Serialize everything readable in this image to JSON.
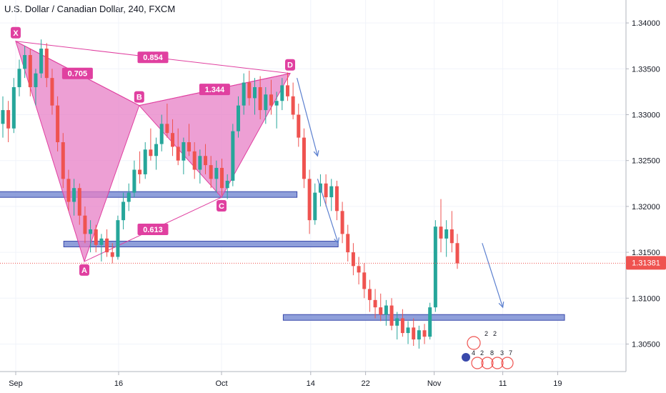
{
  "title": "U.S. Dollar / Canadian Dollar, 240, FXCM",
  "colors": {
    "up": "#26a69a",
    "down": "#ef5350",
    "pattern": "#e040a0",
    "pattern_fill": "#e77fc5",
    "zone": "#7b8ed4",
    "zone_border": "#3949ab",
    "arrow": "#5b7fcf",
    "price_line": "#ef5350",
    "axis_text": "#131722",
    "grid": "#f0f3fa"
  },
  "last_price_label": "1.31381",
  "events_row_top": [
    "2",
    "2"
  ],
  "events_row_bottom": [
    "4",
    "2",
    "8",
    "3",
    "7"
  ],
  "chart_data": {
    "type": "candlestick",
    "title": "U.S. Dollar / Canadian Dollar, 240, FXCM",
    "ylim": [
      1.302,
      1.3425
    ],
    "yticks": [
      "1.30500",
      "1.31000",
      "1.31500",
      "1.32000",
      "1.32500",
      "1.33000",
      "1.33500",
      "1.34000"
    ],
    "ytick_values": [
      1.305,
      1.31,
      1.315,
      1.32,
      1.325,
      1.33,
      1.335,
      1.34
    ],
    "xticks": [
      "Sep",
      "16",
      "Oct",
      "14",
      "22",
      "Nov",
      "11",
      "19"
    ],
    "last_price": 1.31381,
    "harmonic_pattern": {
      "points": [
        {
          "label": "X",
          "date": "Sep 1",
          "price": 1.338
        },
        {
          "label": "A",
          "date": "Sep 11",
          "price": 1.314
        },
        {
          "label": "B",
          "date": "Sep 19",
          "price": 1.331
        },
        {
          "label": "C",
          "date": "Oct 1",
          "price": 1.321
        },
        {
          "label": "D",
          "date": "Oct 11",
          "price": 1.3345
        }
      ],
      "ratios": [
        "0.705",
        "0.854",
        "1.344",
        "0.613"
      ]
    },
    "zones": [
      {
        "from": "Aug 28",
        "to": "Oct 12",
        "price": 1.3213
      },
      {
        "from": "Sep 8",
        "to": "Oct 18",
        "price": 1.3159
      },
      {
        "from": "Oct 10",
        "to": "Nov 20",
        "price": 1.3079
      }
    ],
    "series": [
      {
        "values": [
          [
            1.329,
            1.332,
            1.3275,
            1.3305
          ],
          [
            1.3305,
            1.3315,
            1.327,
            1.3285
          ],
          [
            1.3285,
            1.334,
            1.328,
            1.333
          ],
          [
            1.333,
            1.336,
            1.332,
            1.335
          ],
          [
            1.335,
            1.3375,
            1.334,
            1.3365
          ],
          [
            1.3365,
            1.3372,
            1.332,
            1.333
          ],
          [
            1.333,
            1.335,
            1.331,
            1.3345
          ],
          [
            1.3345,
            1.3382,
            1.334,
            1.3372
          ],
          [
            1.3372,
            1.3378,
            1.333,
            1.334
          ],
          [
            1.334,
            1.335,
            1.33,
            1.331
          ],
          [
            1.331,
            1.332,
            1.326,
            1.327
          ],
          [
            1.327,
            1.328,
            1.322,
            1.323
          ],
          [
            1.323,
            1.324,
            1.3195,
            1.3205
          ],
          [
            1.3205,
            1.323,
            1.319,
            1.322
          ],
          [
            1.322,
            1.3225,
            1.318,
            1.319
          ],
          [
            1.319,
            1.32,
            1.316,
            1.317
          ],
          [
            1.317,
            1.3185,
            1.315,
            1.3175
          ],
          [
            1.3175,
            1.318,
            1.315,
            1.3158
          ],
          [
            1.3158,
            1.317,
            1.314,
            1.3165
          ],
          [
            1.3165,
            1.3175,
            1.3145,
            1.315
          ],
          [
            1.315,
            1.316,
            1.3138,
            1.3145
          ],
          [
            1.3145,
            1.319,
            1.3142,
            1.3185
          ],
          [
            1.3185,
            1.3215,
            1.3175,
            1.3205
          ],
          [
            1.3205,
            1.3225,
            1.3195,
            1.3215
          ],
          [
            1.3215,
            1.325,
            1.321,
            1.324
          ],
          [
            1.324,
            1.326,
            1.3225,
            1.3235
          ],
          [
            1.3235,
            1.327,
            1.323,
            1.3262
          ],
          [
            1.3262,
            1.3285,
            1.325,
            1.3255
          ],
          [
            1.3255,
            1.3275,
            1.324,
            1.3268
          ],
          [
            1.3268,
            1.33,
            1.326,
            1.329
          ],
          [
            1.329,
            1.3312,
            1.3275,
            1.328
          ],
          [
            1.328,
            1.3295,
            1.3255,
            1.3265
          ],
          [
            1.3265,
            1.3285,
            1.3245,
            1.325
          ],
          [
            1.325,
            1.3275,
            1.3235,
            1.327
          ],
          [
            1.327,
            1.329,
            1.3255,
            1.326
          ],
          [
            1.326,
            1.327,
            1.323,
            1.324
          ],
          [
            1.324,
            1.3262,
            1.3225,
            1.3255
          ],
          [
            1.3255,
            1.3268,
            1.3235,
            1.3245
          ],
          [
            1.3245,
            1.3255,
            1.322,
            1.323
          ],
          [
            1.323,
            1.325,
            1.3215,
            1.3242
          ],
          [
            1.3242,
            1.3252,
            1.3212,
            1.322
          ],
          [
            1.322,
            1.3235,
            1.3208,
            1.3228
          ],
          [
            1.3228,
            1.329,
            1.3222,
            1.3282
          ],
          [
            1.3282,
            1.332,
            1.3275,
            1.331
          ],
          [
            1.331,
            1.3345,
            1.33,
            1.3335
          ],
          [
            1.3335,
            1.3348,
            1.331,
            1.3318
          ],
          [
            1.3318,
            1.334,
            1.33,
            1.333
          ],
          [
            1.333,
            1.3342,
            1.3295,
            1.3305
          ],
          [
            1.3305,
            1.333,
            1.329,
            1.3322
          ],
          [
            1.3322,
            1.3338,
            1.33,
            1.331
          ],
          [
            1.331,
            1.3325,
            1.3285,
            1.3315
          ],
          [
            1.3315,
            1.334,
            1.3305,
            1.3332
          ],
          [
            1.3332,
            1.3346,
            1.3315,
            1.332
          ],
          [
            1.332,
            1.3335,
            1.3295,
            1.33
          ],
          [
            1.33,
            1.3312,
            1.3265,
            1.3275
          ],
          [
            1.3275,
            1.3285,
            1.322,
            1.323
          ],
          [
            1.323,
            1.324,
            1.317,
            1.3185
          ],
          [
            1.3185,
            1.3225,
            1.318,
            1.3215
          ],
          [
            1.3215,
            1.3235,
            1.32,
            1.3225
          ],
          [
            1.3225,
            1.3235,
            1.32,
            1.321
          ],
          [
            1.321,
            1.323,
            1.3195,
            1.3222
          ],
          [
            1.3222,
            1.3228,
            1.3185,
            1.3195
          ],
          [
            1.3195,
            1.3205,
            1.316,
            1.317
          ],
          [
            1.317,
            1.318,
            1.314,
            1.315
          ],
          [
            1.315,
            1.316,
            1.3125,
            1.3135
          ],
          [
            1.3135,
            1.3145,
            1.3115,
            1.3128
          ],
          [
            1.3128,
            1.3138,
            1.31,
            1.311
          ],
          [
            1.311,
            1.312,
            1.3085,
            1.3098
          ],
          [
            1.3098,
            1.311,
            1.3078,
            1.309
          ],
          [
            1.309,
            1.3105,
            1.3075,
            1.3082
          ],
          [
            1.3082,
            1.3098,
            1.307,
            1.3092
          ],
          [
            1.3092,
            1.31,
            1.3065,
            1.307
          ],
          [
            1.307,
            1.3085,
            1.3055,
            1.3078
          ],
          [
            1.3078,
            1.3088,
            1.3058,
            1.3062
          ],
          [
            1.3062,
            1.3075,
            1.305,
            1.3068
          ],
          [
            1.3068,
            1.3078,
            1.3048,
            1.3055
          ],
          [
            1.3055,
            1.307,
            1.3045,
            1.3065
          ],
          [
            1.3065,
            1.3072,
            1.305,
            1.3058
          ],
          [
            1.3058,
            1.3095,
            1.3055,
            1.309
          ],
          [
            1.309,
            1.3185,
            1.3085,
            1.3178
          ],
          [
            1.3178,
            1.3208,
            1.315,
            1.3165
          ],
          [
            1.3165,
            1.3185,
            1.3145,
            1.3175
          ],
          [
            1.3175,
            1.3195,
            1.315,
            1.316
          ],
          [
            1.316,
            1.317,
            1.3132,
            1.3138
          ]
        ]
      }
    ]
  }
}
